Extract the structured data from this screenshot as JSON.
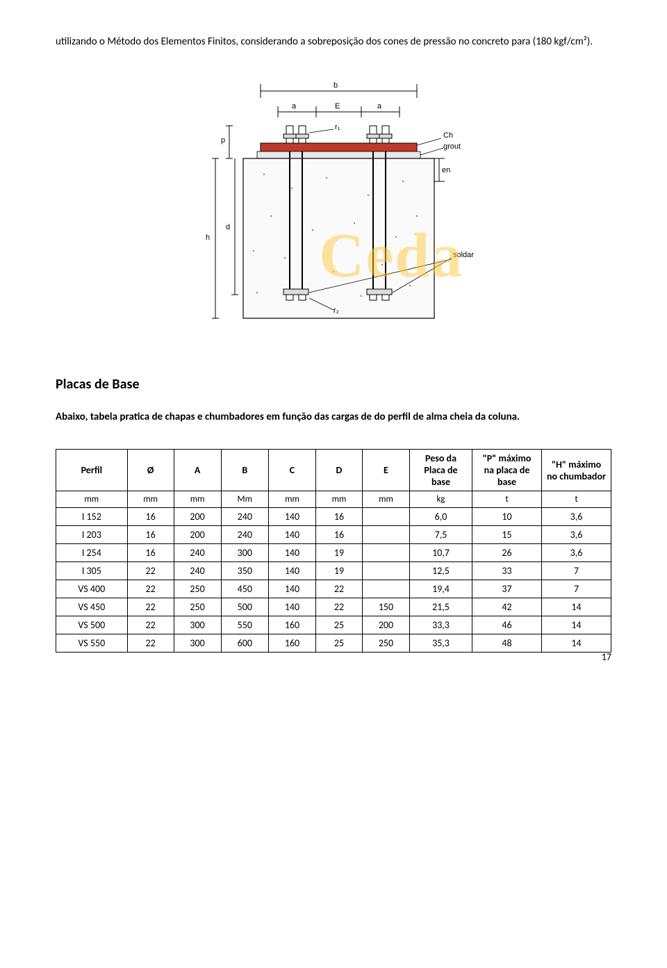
{
  "intro": "utilizando o Método dos Elementos Finitos, considerando a sobreposição dos cones de pressão no concreto para (180 kgf/cm²).",
  "watermark": "Ceda",
  "section_title": "Placas de Base",
  "section_desc": "Abaixo, tabela pratica de chapas e chumbadores em função das cargas de do perfil de alma cheia da coluna.",
  "diagram_labels": {
    "b": "b",
    "a1": "a",
    "E": "E",
    "a2": "a",
    "p": "p",
    "r1": "r₁",
    "Ch": "Ch",
    "grout": "grout",
    "h": "h",
    "d": "d",
    "en": "en",
    "soldar": "soldar",
    "r2": "r₂"
  },
  "table": {
    "headers": [
      "Perfil",
      "Ø",
      "A",
      "B",
      "C",
      "D",
      "E",
      "Peso da Placa de base",
      "\"P\" máximo na placa de base",
      "\"H\" máximo no chumbador"
    ],
    "units": [
      "mm",
      "mm",
      "mm",
      "Mm",
      "mm",
      "mm",
      "mm",
      "kg",
      "t",
      "t"
    ],
    "rows": [
      [
        "I 152",
        "16",
        "200",
        "240",
        "140",
        "16",
        "",
        "6,0",
        "10",
        "3,6"
      ],
      [
        "I 203",
        "16",
        "200",
        "240",
        "140",
        "16",
        "",
        "7,5",
        "15",
        "3,6"
      ],
      [
        "I 254",
        "16",
        "240",
        "300",
        "140",
        "19",
        "",
        "10,7",
        "26",
        "3,6"
      ],
      [
        "I 305",
        "22",
        "240",
        "350",
        "140",
        "19",
        "",
        "12,5",
        "33",
        "7"
      ],
      [
        "VS 400",
        "22",
        "250",
        "450",
        "140",
        "22",
        "",
        "19,4",
        "37",
        "7"
      ],
      [
        "VS 450",
        "22",
        "250",
        "500",
        "140",
        "22",
        "150",
        "21,5",
        "42",
        "14"
      ],
      [
        "VS 500",
        "22",
        "300",
        "550",
        "160",
        "25",
        "200",
        "33,3",
        "46",
        "14"
      ],
      [
        "VS 550",
        "22",
        "300",
        "600",
        "160",
        "25",
        "250",
        "35,3",
        "48",
        "14"
      ]
    ]
  },
  "page_number": "17"
}
